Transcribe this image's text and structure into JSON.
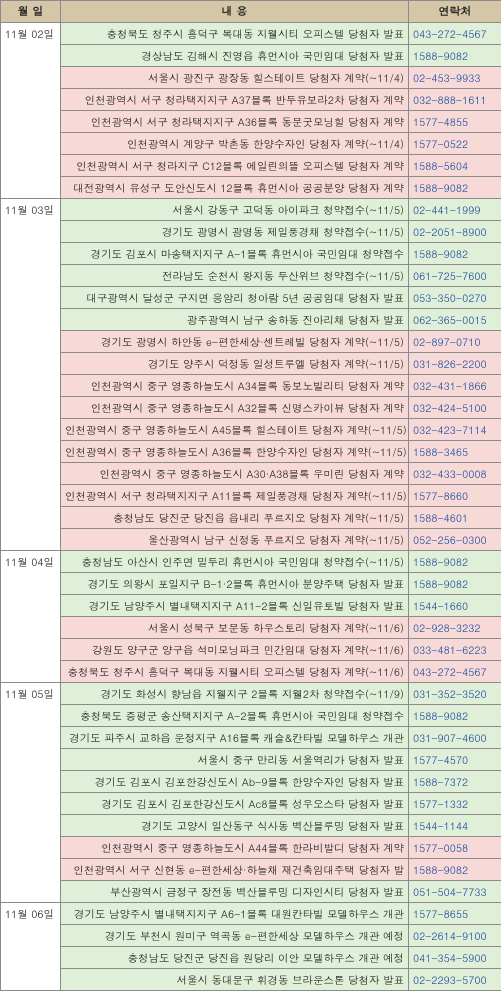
{
  "colors": {
    "header_bg": "#d4c6a6",
    "green_bg": "#e0efd7",
    "pink_bg": "#f7dad7",
    "border": "#8b8b8b",
    "tel_text": "#1a4aa0",
    "text": "#222222"
  },
  "headers": {
    "date": "월 일",
    "desc": "내 용",
    "tel": "연락처"
  },
  "groups": [
    {
      "date": "11월 02일",
      "rows": [
        {
          "desc": "충청북도 청주시 흥덕구 복대동 지웰시티 오피스텔 당첨자 발표",
          "tel": "043-272-4567",
          "c": "g"
        },
        {
          "desc": "경상남도 김해시 진영읍 휴먼시아 국민임대 당첨자 발표",
          "tel": "1588-9082",
          "c": "g"
        },
        {
          "desc": "서울시 광진구 광장동 힐스테이트 당첨자 계약(~11/4)",
          "tel": "02-453-9933",
          "c": "p"
        },
        {
          "desc": "인천광역시 서구 청라택지지구 A37블록 반두유보라2차 당첨자 계약",
          "tel": "032-888-1611",
          "c": "p"
        },
        {
          "desc": "인천광역시 서구 청라택지지구 A36블록 동문굿모닝힐 당첨자 계약",
          "tel": "1577-4855",
          "c": "p"
        },
        {
          "desc": "인천광역시 계양구 박촌동 한양수자인 당첨자 계약(~11/4)",
          "tel": "1577-0522",
          "c": "p"
        },
        {
          "desc": "인천광역시 서구 청라지구 C12블록 에일린의뜰 오피스텔 당첨자 계약",
          "tel": "1588-5604",
          "c": "p"
        },
        {
          "desc": "대전광역시 유성구 도안신도시 12블록 휴먼시아 공공분양 당첨자 계약",
          "tel": "1588-9082",
          "c": "p"
        }
      ]
    },
    {
      "date": "11월 03일",
      "rows": [
        {
          "desc": "서울시 강동구 고덕동 아이파크 청약접수(~11/5)",
          "tel": "02-441-1999",
          "c": "g"
        },
        {
          "desc": "경기도 광명시 광명동 제일풍경채 청약접수(~11/5)",
          "tel": "02-2051-8900",
          "c": "g"
        },
        {
          "desc": "경기도 김포시 마송택지지구 A-1블록  휴먼시아 국민임대 청약접수",
          "tel": "1588-9082",
          "c": "g"
        },
        {
          "desc": "전라남도 순천시 왕지동 두산위브 청약접수(~11/5)",
          "tel": "061-725-7600",
          "c": "g"
        },
        {
          "desc": "대구광역시 달성군 구지면 응암리 청아람 5년 공공임대 당첨자 발표",
          "tel": "053-350-0270",
          "c": "g"
        },
        {
          "desc": "광주광역시 남구 송하동 진아리채 당첨자 발표",
          "tel": "062-365-0015",
          "c": "g"
        },
        {
          "desc": "경기도 광명시 하안동 e-편한세상·센트레빌 당첨자 계약(~11/5)",
          "tel": "02-897-0710",
          "c": "p"
        },
        {
          "desc": "경기도 양주시 덕정동 일성트루엘 당첨자 계약(~11/5)",
          "tel": "031-826-2200",
          "c": "p"
        },
        {
          "desc": "인천광역시 중구 영종하늘도시 A34블록 동보노빌리티 당첨자 계약",
          "tel": "032-431-1866",
          "c": "p"
        },
        {
          "desc": "인천광역시 중구 영종하늘도시 A32블록 신명스카이뷰 당첨자 계약",
          "tel": "032-424-5100",
          "c": "p"
        },
        {
          "desc": "인천광역시 중구 영종하늘도시 A45블록 힐스테이트 당첨자 계약(~11/5)",
          "tel": "032-423-7114",
          "c": "p"
        },
        {
          "desc": "인천광역시 중구 영종하늘도시 A36블록 한양수자인 당첨자 계약(~11/5)",
          "tel": "1588-3465",
          "c": "p"
        },
        {
          "desc": "인천광역시 중구 영종하늘도시 A30·A38블록 우미린 당첨자 계약",
          "tel": "032-433-0008",
          "c": "p"
        },
        {
          "desc": "인천광역시 서구 청라택지지구 A11블록 제일풍경채 당첨자 계약(~11/5)",
          "tel": "1577-8660",
          "c": "p"
        },
        {
          "desc": "충청남도 당진군 당진읍 읍내리 푸르지오 당첨자 계약(~11/5)",
          "tel": "1588-4601",
          "c": "p"
        },
        {
          "desc": "울산광역시 남구 신정동 푸르지오 당첨자 계약(~11/5)",
          "tel": "052-256-0300",
          "c": "p"
        }
      ]
    },
    {
      "date": "11월 04일",
      "rows": [
        {
          "desc": "충청남도 아산시 인주면 밀두리 휴먼시아 국민임대 청약접수(~11/5)",
          "tel": "1588-9082",
          "c": "g"
        },
        {
          "desc": "경기도 의왕시 포일지구 B-1·2블록 휴먼시아 분양주택 당첨자 발표",
          "tel": "1588-9082",
          "c": "g"
        },
        {
          "desc": "경기도 남양주시 별내택지지구 A11-2블록 신일유토빌 당첨자 발표",
          "tel": "1544-1660",
          "c": "g"
        },
        {
          "desc": "서울시 성북구 보문동 하우스토리 당첨자 계약(~11/6)",
          "tel": "02-928-3232",
          "c": "p"
        },
        {
          "desc": "강원도 양구군 양구읍 석미모닝파크 민간임대 당첨자 계약(~11/6)",
          "tel": "033-481-6223",
          "c": "p"
        },
        {
          "desc": "충청북도 청주시 흥덕구 복대동 지웰시티 오피스텔 당첨자 계약(~11/6)",
          "tel": "043-272-4567",
          "c": "p"
        }
      ]
    },
    {
      "date": "11월 05일",
      "rows": [
        {
          "desc": "경기도 화성시 향남읍 지웰지구 2블록 지웰2차 청약접수(~11/9)",
          "tel": "031-352-3520",
          "c": "g"
        },
        {
          "desc": "충청북도 증평군 송산택지지구 A-2블록 휴먼시아 국민임대 청약접수",
          "tel": "1588-9082",
          "c": "g"
        },
        {
          "desc": "경기도 파주시 교하읍 운정지구 A16블록 캐슬&칸타빌 모델하우스 개관",
          "tel": "031-907-4600",
          "c": "g"
        },
        {
          "desc": "서울시 중구 만리동 서울역리가 당첨자 발표",
          "tel": "1577-4570",
          "c": "g"
        },
        {
          "desc": "경기도 김포시 김포한강신도시 Ab-9블록 한양수자인 당첨자 발표",
          "tel": "1588-7372",
          "c": "g"
        },
        {
          "desc": "경기도 김포시 김포한강신도시 Ac8블록 성우오스타 당첨자 발표",
          "tel": "1577-1332",
          "c": "g"
        },
        {
          "desc": "경기도 고양시 일산동구 식사동 벽산블루밍 당첨자 발표",
          "tel": "1544-1144",
          "c": "g"
        },
        {
          "desc": "인천광역시 중구 영종하늘도시 A44블록 한라비발디 당첨자 계약",
          "tel": "1577-0058",
          "c": "p"
        },
        {
          "desc": "인천광역시 서구 신현동 e-편한세상·하늘채 재건축임대주택 당첨자 발",
          "tel": "1588-9082",
          "c": "p"
        },
        {
          "desc": "부산광역시 금정구 장전동 벽산블루밍 디자인시티 당첨자 발표",
          "tel": "051-504-7733",
          "c": "g"
        }
      ]
    },
    {
      "date": "11월 06일",
      "rows": [
        {
          "desc": "경기도 남양주시 별내택지지구 A6-1블록 대원칸타빌 모델하우스 개관",
          "tel": "1577-8655",
          "c": "g"
        },
        {
          "desc": "경기도 부천시 원미구 역곡동 e-편한세상 모델하우스 개관 예정",
          "tel": "02-2614-9100",
          "c": "g"
        },
        {
          "desc": "충청남도 당진군 당진읍 원당리 이안 모델하우스 개관 예정",
          "tel": "041-354-5900",
          "c": "g"
        },
        {
          "desc": "서울시 동대문구 휘경동 브라운스톤 당첨자 발표",
          "tel": "02-2293-5700",
          "c": "g"
        }
      ]
    }
  ]
}
